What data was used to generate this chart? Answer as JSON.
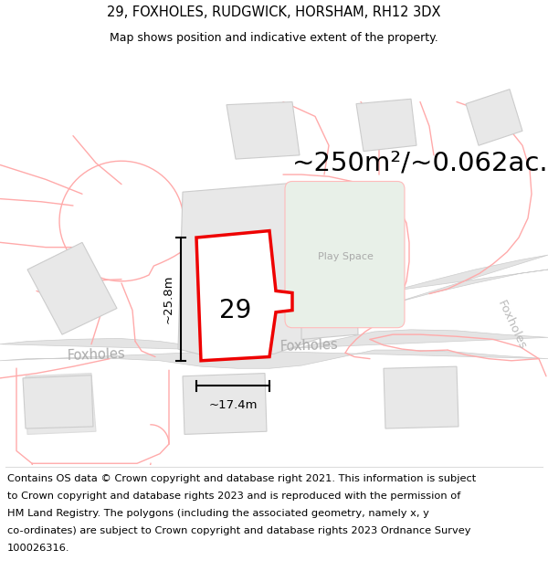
{
  "title": "29, FOXHOLES, RUDGWICK, HORSHAM, RH12 3DX",
  "subtitle": "Map shows position and indicative extent of the property.",
  "area_text": "~250m²/~0.062ac.",
  "height_label": "~25.8m",
  "width_label": "~17.4m",
  "plot_number": "29",
  "play_space_label": "Play Space",
  "footer_lines": [
    "Contains OS data © Crown copyright and database right 2021. This information is subject",
    "to Crown copyright and database rights 2023 and is reproduced with the permission of",
    "HM Land Registry. The polygons (including the associated geometry, namely x, y",
    "co-ordinates) are subject to Crown copyright and database rights 2023 Ordnance Survey",
    "100026316."
  ],
  "bg_color": "#ffffff",
  "plot_fill": "#ffffff",
  "plot_edge": "#ee0000",
  "neighbor_fill": "#e8e8e8",
  "neighbor_edge": "#cccccc",
  "pink_line_color": "#ffaaaa",
  "play_space_fill": "#e8f0e8",
  "play_space_edge": "#ffbbbb",
  "title_fontsize": 10.5,
  "subtitle_fontsize": 9,
  "area_fontsize": 21,
  "footer_fontsize": 8.2
}
